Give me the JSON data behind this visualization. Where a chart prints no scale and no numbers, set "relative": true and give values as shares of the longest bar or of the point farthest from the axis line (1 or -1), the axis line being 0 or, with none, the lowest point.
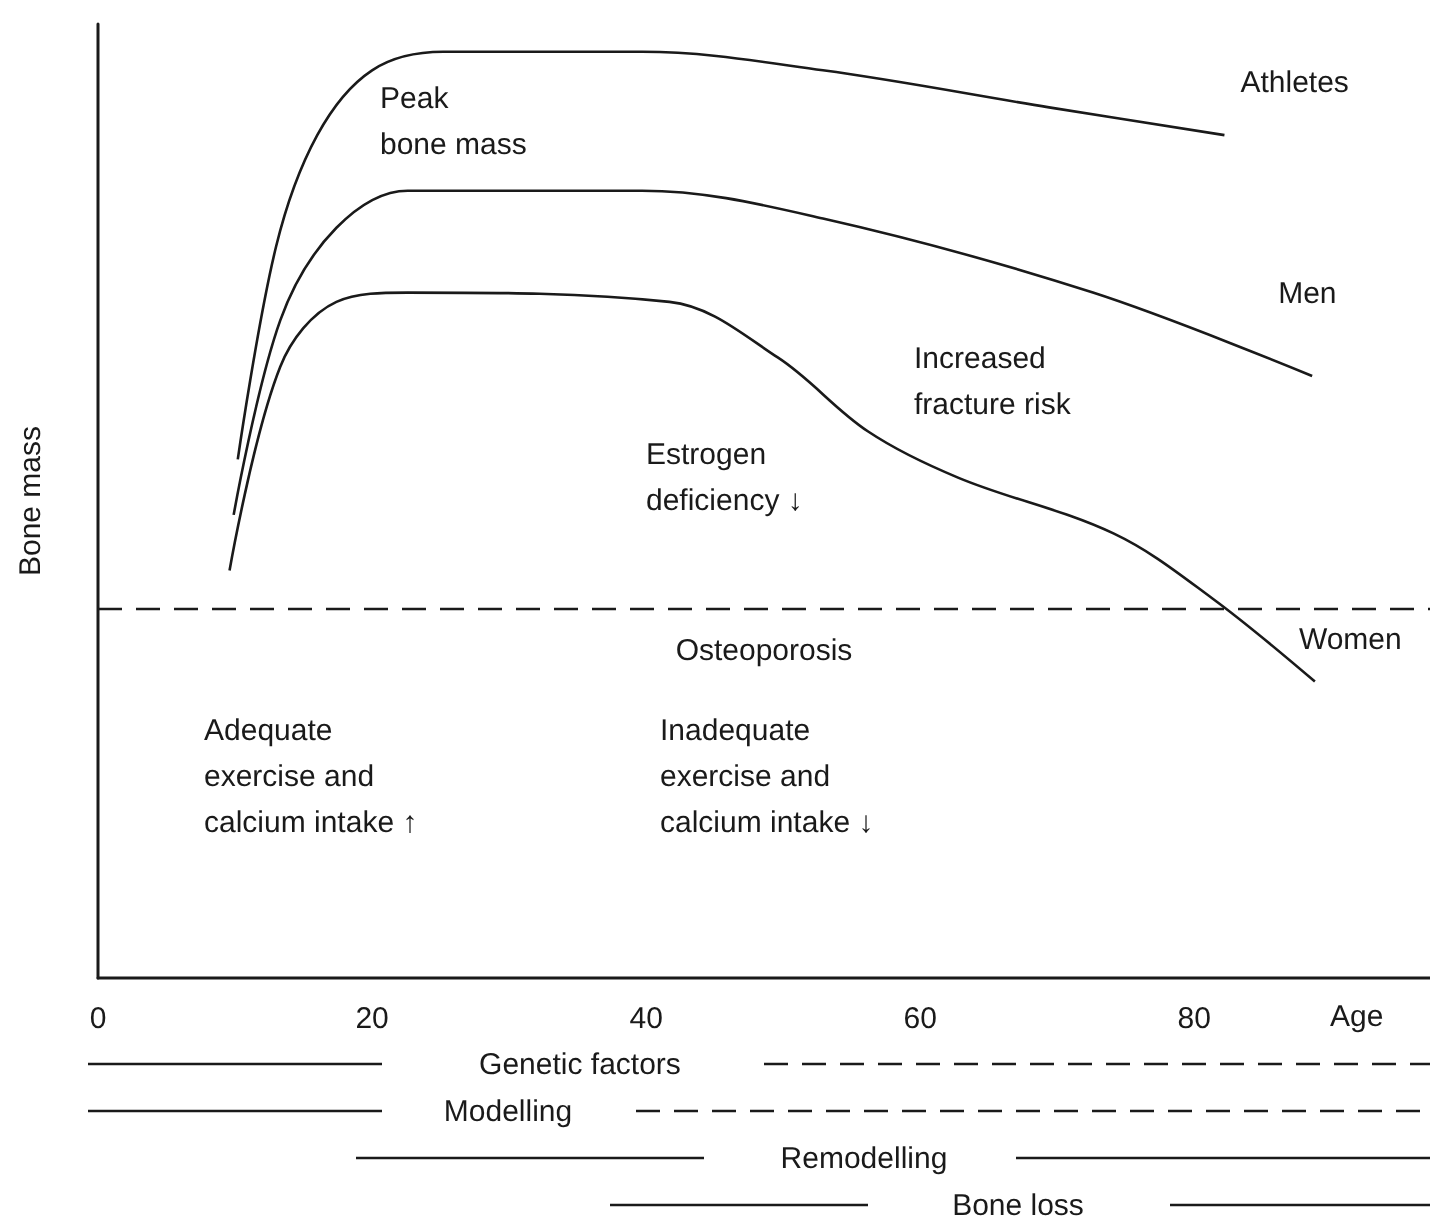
{
  "chart_data": [
    {
      "type": "line",
      "relative": true,
      "xlabel": "Age",
      "ylabel": "Bone mass",
      "xlim": [
        0,
        97.2
      ],
      "xticks": [
        0,
        20,
        40,
        60,
        80
      ],
      "grid": false,
      "legend": false,
      "marker": "none",
      "line_style": "solid",
      "series": [
        {
          "name": "Athletes",
          "color": "#1a1a1a",
          "x": [
            10.2,
            13.0,
            16.0,
            20.0,
            25.2,
            39.7,
            52.9,
            69.4,
            82.2
          ],
          "values": [
            0.56,
            0.79,
            0.91,
            0.98,
            1.0,
            1.0,
            0.98,
            0.94,
            0.91
          ]
        },
        {
          "name": "Men",
          "color": "#1a1a1a",
          "x": [
            9.9,
            13.3,
            17.4,
            22.6,
            39.7,
            52.9,
            72.6,
            88.6
          ],
          "values": [
            0.5,
            0.71,
            0.81,
            0.85,
            0.85,
            0.82,
            0.74,
            0.65
          ]
        },
        {
          "name": "Women",
          "color": "#1a1a1a",
          "x": [
            9.6,
            13.3,
            17.4,
            22.6,
            41.7,
            49.6,
            56.2,
            62.8,
            74.1,
            81.3,
            88.8
          ],
          "values": [
            0.44,
            0.66,
            0.73,
            0.74,
            0.73,
            0.67,
            0.59,
            0.54,
            0.48,
            0.41,
            0.32
          ]
        }
      ],
      "ref_lines": [
        {
          "axis": "y",
          "value": 0.4,
          "label": "Osteoporosis",
          "color": "#1a1a1a",
          "line_style": "dashed"
        }
      ],
      "annotations": [
        "Peak\nbone mass",
        "Increased\nfracture risk",
        "Estrogen\ndeficiency ↓",
        "Adequate\nexercise and\ncalcium intake ↑",
        "Inadequate\nexercise and\ncalcium intake ↓"
      ]
    },
    {
      "type": "other",
      "annotations": [
        "Genetic factors",
        "Modelling",
        "Remodelling",
        "Bone loss"
      ]
    }
  ]
}
